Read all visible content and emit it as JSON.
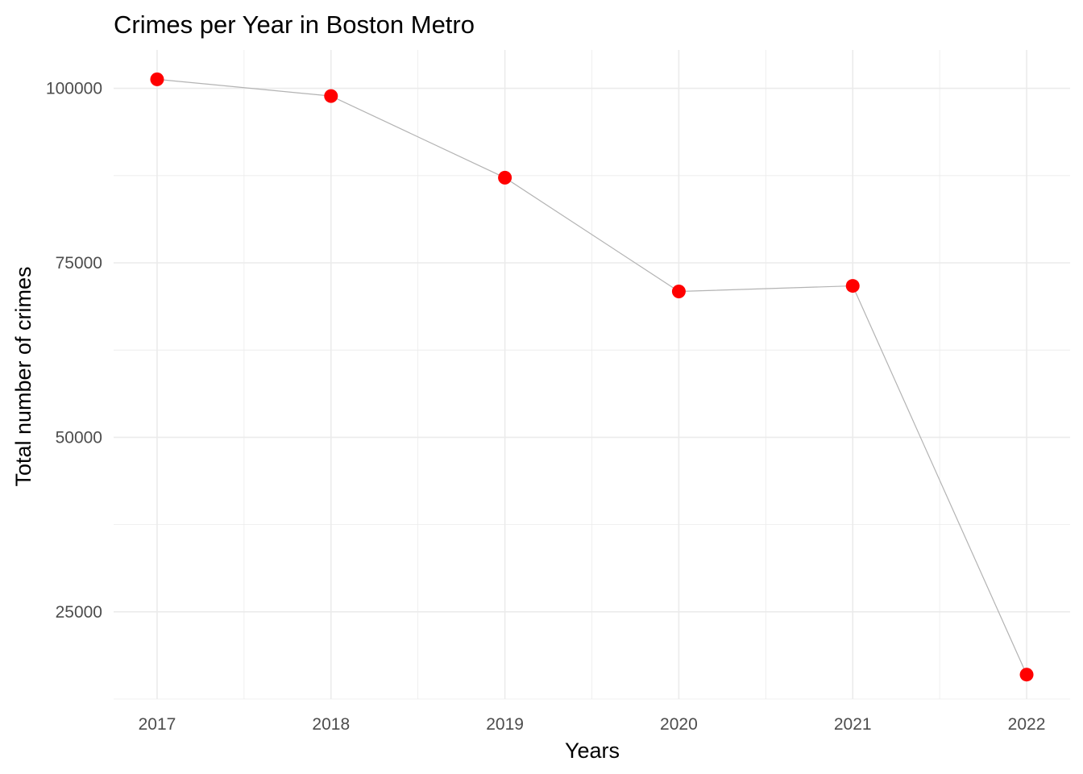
{
  "chart_data": {
    "type": "line",
    "title": "Crimes per Year in Boston Metro",
    "xlabel": "Years",
    "ylabel": "Total number of crimes",
    "x": [
      2017,
      2018,
      2019,
      2020,
      2021,
      2022
    ],
    "x_tick_labels": [
      "2017",
      "2018",
      "2019",
      "2020",
      "2021",
      "2022"
    ],
    "y_ticks": [
      25000,
      50000,
      75000,
      100000
    ],
    "y_tick_labels": [
      "25000",
      "50000",
      "75000",
      "100000"
    ],
    "ylim": [
      12500,
      105500
    ],
    "xlim": [
      2016.75,
      2022.25
    ],
    "series": [
      {
        "values": [
          101300,
          98900,
          87200,
          70900,
          71700,
          16000
        ],
        "line_color": "#b3b3b3",
        "point_color": "#ff0000"
      }
    ],
    "grid": true,
    "legend": "none"
  }
}
